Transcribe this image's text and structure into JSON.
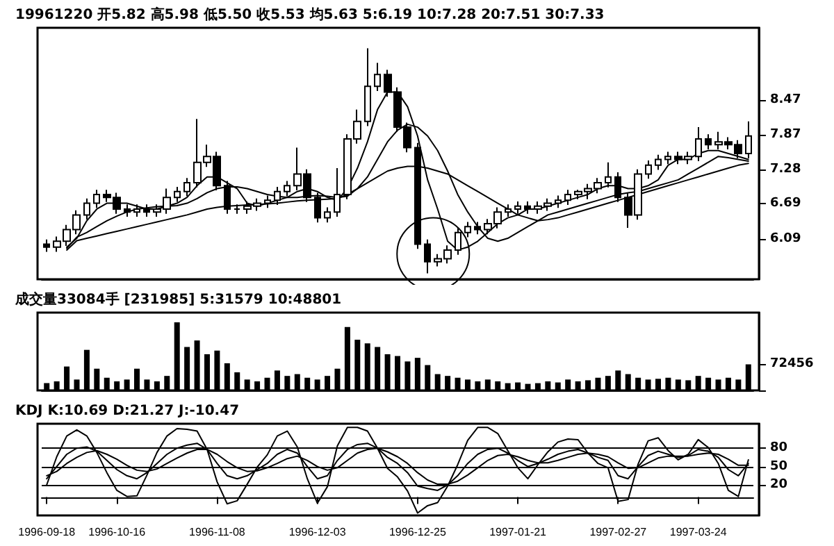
{
  "chart_data": [
    {
      "type": "candlestick",
      "title": "19961220 开5.82 高5.98 低5.50 收5.53 均5.63 5:6.19 10:7.28 20:7.51 30:7.33",
      "color": "#000000",
      "tick_labels": "y",
      "marker": "none",
      "line_style": "solid",
      "categories": [
        "1996-09-18",
        null,
        null,
        null,
        null,
        null,
        null,
        "1996-10-16",
        null,
        null,
        null,
        null,
        null,
        null,
        null,
        null,
        null,
        "1996-11-08",
        null,
        null,
        null,
        null,
        null,
        null,
        null,
        null,
        null,
        "1996-12-03",
        null,
        null,
        null,
        null,
        null,
        null,
        null,
        null,
        null,
        "1996-12-25",
        null,
        null,
        null,
        null,
        null,
        null,
        null,
        null,
        null,
        "1997-01-21",
        null,
        null,
        null,
        null,
        null,
        null,
        null,
        null,
        null,
        "1997-02-27",
        null,
        null,
        null,
        null,
        null,
        null,
        null,
        "1997-03-24",
        null,
        null,
        null,
        null,
        null
      ],
      "ylim": [
        5.4,
        9.7
      ],
      "yticks": [
        6.09,
        6.69,
        7.28,
        7.87,
        8.47
      ],
      "ohlc": [
        [
          6.0,
          6.08,
          5.87,
          5.95
        ],
        [
          5.95,
          6.13,
          5.87,
          6.05
        ],
        [
          6.05,
          6.33,
          5.97,
          6.25
        ],
        [
          6.25,
          6.58,
          6.17,
          6.5
        ],
        [
          6.5,
          6.78,
          6.42,
          6.7
        ],
        [
          6.7,
          6.93,
          6.62,
          6.85
        ],
        [
          6.85,
          6.93,
          6.72,
          6.8
        ],
        [
          6.8,
          6.88,
          6.52,
          6.6
        ],
        [
          6.6,
          6.68,
          6.47,
          6.55
        ],
        [
          6.55,
          6.68,
          6.47,
          6.6
        ],
        [
          6.6,
          6.68,
          6.47,
          6.55
        ],
        [
          6.55,
          6.68,
          6.47,
          6.6
        ],
        [
          6.6,
          6.95,
          6.52,
          6.8
        ],
        [
          6.8,
          6.98,
          6.72,
          6.9
        ],
        [
          6.9,
          7.13,
          6.82,
          7.05
        ],
        [
          7.05,
          8.14,
          6.97,
          7.4
        ],
        [
          7.4,
          7.7,
          7.32,
          7.5
        ],
        [
          7.5,
          7.58,
          6.92,
          7.0
        ],
        [
          7.0,
          7.08,
          6.52,
          6.6
        ],
        [
          6.6,
          6.68,
          6.52,
          6.6
        ],
        [
          6.6,
          6.73,
          6.52,
          6.65
        ],
        [
          6.65,
          6.78,
          6.57,
          6.7
        ],
        [
          6.7,
          6.83,
          6.62,
          6.75
        ],
        [
          6.75,
          6.98,
          6.67,
          6.9
        ],
        [
          6.9,
          7.08,
          6.82,
          7.0
        ],
        [
          7.0,
          7.65,
          6.92,
          7.2
        ],
        [
          7.2,
          7.28,
          6.72,
          6.8
        ],
        [
          6.8,
          6.88,
          6.37,
          6.45
        ],
        [
          6.45,
          6.63,
          6.37,
          6.55
        ],
        [
          6.55,
          7.3,
          6.47,
          6.85
        ],
        [
          6.85,
          7.88,
          6.77,
          7.8
        ],
        [
          7.8,
          8.3,
          7.72,
          8.1
        ],
        [
          8.1,
          9.35,
          8.02,
          8.7
        ],
        [
          8.7,
          9.1,
          8.62,
          8.9
        ],
        [
          8.9,
          8.98,
          8.52,
          8.6
        ],
        [
          8.6,
          8.68,
          7.92,
          8.0
        ],
        [
          8.0,
          8.08,
          7.57,
          7.65
        ],
        [
          7.65,
          7.73,
          5.92,
          6.0
        ],
        [
          6.0,
          6.08,
          5.5,
          5.7
        ],
        [
          5.7,
          5.83,
          5.62,
          5.75
        ],
        [
          5.75,
          5.98,
          5.67,
          5.9
        ],
        [
          5.9,
          6.28,
          5.82,
          6.2
        ],
        [
          6.2,
          6.38,
          6.12,
          6.3
        ],
        [
          6.3,
          6.38,
          6.17,
          6.25
        ],
        [
          6.25,
          6.43,
          6.17,
          6.35
        ],
        [
          6.35,
          6.63,
          6.27,
          6.55
        ],
        [
          6.55,
          6.68,
          6.47,
          6.6
        ],
        [
          6.6,
          6.73,
          6.52,
          6.65
        ],
        [
          6.65,
          6.73,
          6.52,
          6.6
        ],
        [
          6.6,
          6.73,
          6.52,
          6.65
        ],
        [
          6.65,
          6.78,
          6.57,
          6.7
        ],
        [
          6.7,
          6.83,
          6.62,
          6.75
        ],
        [
          6.75,
          6.93,
          6.67,
          6.85
        ],
        [
          6.85,
          6.93,
          6.77,
          6.9
        ],
        [
          6.9,
          7.03,
          6.77,
          6.95
        ],
        [
          6.95,
          7.13,
          6.87,
          7.05
        ],
        [
          7.05,
          7.4,
          6.97,
          7.15
        ],
        [
          7.15,
          7.23,
          6.72,
          6.8
        ],
        [
          6.8,
          6.88,
          6.28,
          6.5
        ],
        [
          6.5,
          7.28,
          6.42,
          7.2
        ],
        [
          7.2,
          7.43,
          7.12,
          7.35
        ],
        [
          7.35,
          7.53,
          7.27,
          7.45
        ],
        [
          7.45,
          7.58,
          7.37,
          7.5
        ],
        [
          7.5,
          7.58,
          7.37,
          7.45
        ],
        [
          7.45,
          7.58,
          7.37,
          7.5
        ],
        [
          7.5,
          8.0,
          7.42,
          7.8
        ],
        [
          7.8,
          7.88,
          7.62,
          7.7
        ],
        [
          7.7,
          7.92,
          7.62,
          7.75
        ],
        [
          7.75,
          7.83,
          7.62,
          7.7
        ],
        [
          7.7,
          7.78,
          7.47,
          7.55
        ],
        [
          7.55,
          8.1,
          7.47,
          7.85
        ]
      ],
      "series": [
        {
          "type": "line",
          "color": "#000000",
          "values": [
            null,
            null,
            5.95,
            6.1,
            6.4,
            6.6,
            6.7,
            6.7,
            6.7,
            6.65,
            6.6,
            6.6,
            6.65,
            6.7,
            6.8,
            7.0,
            7.15,
            7.15,
            7.05,
            6.95,
            6.7,
            6.65,
            6.7,
            6.75,
            6.8,
            6.9,
            6.95,
            6.9,
            6.8,
            6.75,
            6.95,
            7.3,
            7.75,
            8.3,
            8.6,
            8.6,
            8.35,
            7.85,
            7.1,
            6.6,
            6.05,
            5.9,
            5.95,
            6.05,
            6.2,
            6.35,
            6.45,
            6.5,
            6.6,
            6.6,
            6.65,
            6.7,
            6.75,
            6.8,
            6.85,
            6.95,
            7.0,
            7.0,
            6.95,
            6.95,
            7.0,
            7.1,
            7.35,
            7.45,
            7.45,
            7.55,
            7.6,
            7.6,
            7.55,
            7.5,
            7.45
          ]
        },
        {
          "type": "line",
          "color": "#000000",
          "values": [
            null,
            null,
            5.93,
            6.12,
            6.2,
            6.3,
            6.4,
            6.48,
            6.55,
            6.6,
            6.62,
            6.64,
            6.65,
            6.66,
            6.7,
            6.78,
            6.88,
            6.95,
            6.98,
            6.98,
            6.95,
            6.9,
            6.85,
            6.82,
            6.8,
            6.8,
            6.82,
            6.83,
            6.82,
            6.8,
            6.82,
            6.95,
            7.15,
            7.45,
            7.75,
            7.95,
            8.05,
            8.0,
            7.85,
            7.6,
            7.25,
            6.85,
            6.55,
            6.3,
            6.1,
            6.05,
            6.1,
            6.2,
            6.3,
            6.4,
            6.5,
            6.55,
            6.6,
            6.65,
            6.7,
            6.75,
            6.8,
            6.85,
            6.88,
            6.9,
            6.95,
            7.0,
            7.05,
            7.1,
            7.2,
            7.3,
            7.4,
            7.5,
            7.48,
            7.45,
            7.42
          ]
        },
        {
          "type": "line",
          "color": "#000000",
          "values": [
            null,
            null,
            5.9,
            6.06,
            6.1,
            6.14,
            6.18,
            6.22,
            6.26,
            6.3,
            6.34,
            6.38,
            6.42,
            6.46,
            6.5,
            6.55,
            6.6,
            6.63,
            6.65,
            6.66,
            6.67,
            6.68,
            6.69,
            6.7,
            6.72,
            6.74,
            6.75,
            6.76,
            6.77,
            6.78,
            6.85,
            6.95,
            7.05,
            7.15,
            7.25,
            7.3,
            7.33,
            7.33,
            7.3,
            7.25,
            7.2,
            7.1,
            7.0,
            6.9,
            6.8,
            6.7,
            6.6,
            6.5,
            6.45,
            6.4,
            6.42,
            6.45,
            6.5,
            6.55,
            6.6,
            6.65,
            6.7,
            6.75,
            6.8,
            6.85,
            6.9,
            6.95,
            7.0,
            7.05,
            7.1,
            7.15,
            7.2,
            7.25,
            7.3,
            7.35,
            7.38
          ]
        }
      ]
    },
    {
      "type": "bar",
      "title": "成交量33084手 [231985] 5:31579 10:48801",
      "tick_labels": "y",
      "categories": [
        "1996-09-18",
        null,
        null,
        null,
        null,
        null,
        null,
        "1996-10-16",
        null,
        null,
        null,
        null,
        null,
        null,
        null,
        null,
        null,
        "1996-11-08",
        null,
        null,
        null,
        null,
        null,
        null,
        null,
        null,
        null,
        "1996-12-03",
        null,
        null,
        null,
        null,
        null,
        null,
        null,
        null,
        null,
        "1996-12-25",
        null,
        null,
        null,
        null,
        null,
        null,
        null,
        null,
        null,
        "1997-01-21",
        null,
        null,
        null,
        null,
        null,
        null,
        null,
        null,
        null,
        "1997-02-27",
        null,
        null,
        null,
        null,
        null,
        null,
        null,
        "1997-03-24",
        null,
        null,
        null,
        null,
        null
      ],
      "ylim": [
        0,
        215000
      ],
      "yticks": [
        {
          "value": 0,
          "label": null
        },
        72456
      ],
      "series": [
        {
          "color": "#000000",
          "values": [
            20000,
            25000,
            66000,
            30000,
            112000,
            60000,
            35000,
            25000,
            30000,
            60000,
            30000,
            25000,
            40000,
            188000,
            120000,
            138000,
            100000,
            110000,
            75000,
            50000,
            30000,
            25000,
            35000,
            55000,
            40000,
            45000,
            35000,
            30000,
            40000,
            60000,
            175000,
            140000,
            130000,
            120000,
            100000,
            95000,
            80000,
            90000,
            70000,
            45000,
            40000,
            35000,
            30000,
            25000,
            30000,
            25000,
            20000,
            22000,
            18000,
            20000,
            25000,
            22000,
            30000,
            25000,
            28000,
            35000,
            40000,
            55000,
            45000,
            35000,
            30000,
            32000,
            35000,
            30000,
            28000,
            40000,
            35000,
            30000,
            35000,
            30000,
            72000
          ]
        }
      ]
    },
    {
      "type": "line",
      "title": "KDJ K:10.69 D:21.27 J:-10.47",
      "marker": "none",
      "line_style": "solid",
      "categories": [
        "1996-09-18",
        null,
        null,
        null,
        null,
        null,
        null,
        "1996-10-16",
        null,
        null,
        null,
        null,
        null,
        null,
        null,
        null,
        null,
        "1996-11-08",
        null,
        null,
        null,
        null,
        null,
        null,
        null,
        null,
        null,
        "1996-12-03",
        null,
        null,
        null,
        null,
        null,
        null,
        null,
        null,
        null,
        "1996-12-25",
        null,
        null,
        null,
        null,
        null,
        null,
        null,
        null,
        null,
        "1997-01-21",
        null,
        null,
        null,
        null,
        null,
        null,
        null,
        null,
        null,
        "1997-02-27",
        null,
        null,
        null,
        null,
        null,
        null,
        null,
        "1997-03-24",
        null,
        null,
        null,
        null,
        null
      ],
      "ylim": [
        -30,
        120
      ],
      "yticks": [
        20,
        50,
        80
      ],
      "ref_lines": [
        {
          "axis": "y",
          "value": 80,
          "color": "#000000"
        },
        {
          "axis": "y",
          "value": 50,
          "color": "#000000"
        },
        {
          "axis": "y",
          "value": 20,
          "color": "#000000"
        }
      ],
      "series": [
        {
          "color": "#000000",
          "values": [
            30,
            50,
            70,
            80,
            82,
            75,
            60,
            45,
            35,
            30,
            40,
            55,
            70,
            80,
            85,
            88,
            78,
            55,
            35,
            30,
            35,
            45,
            55,
            70,
            78,
            72,
            50,
            30,
            35,
            60,
            78,
            86,
            88,
            80,
            65,
            55,
            40,
            18,
            14,
            11,
            20,
            35,
            55,
            70,
            78,
            80,
            72,
            60,
            50,
            55,
            62,
            70,
            75,
            78,
            72,
            65,
            60,
            35,
            30,
            50,
            68,
            75,
            70,
            65,
            68,
            78,
            75,
            65,
            45,
            35,
            55
          ]
        },
        {
          "color": "#000000",
          "values": [
            35,
            42,
            55,
            65,
            73,
            76,
            70,
            62,
            52,
            44,
            42,
            46,
            55,
            64,
            72,
            78,
            78,
            70,
            58,
            48,
            42,
            43,
            48,
            55,
            63,
            67,
            60,
            50,
            44,
            48,
            60,
            72,
            78,
            80,
            74,
            66,
            55,
            40,
            28,
            21,
            21,
            26,
            36,
            48,
            60,
            68,
            70,
            66,
            60,
            56,
            56,
            60,
            65,
            70,
            72,
            70,
            66,
            56,
            47,
            48,
            56,
            64,
            67,
            67,
            67,
            70,
            72,
            70,
            62,
            52,
            52
          ]
        },
        {
          "color": "#000000",
          "values": [
            20,
            66,
            100,
            110,
            100,
            73,
            40,
            11,
            1,
            2,
            36,
            73,
            100,
            112,
            111,
            108,
            78,
            25,
            -11,
            -6,
            21,
            49,
            69,
            100,
            108,
            82,
            30,
            -10,
            17,
            84,
            114,
            114,
            108,
            80,
            47,
            33,
            10,
            -26,
            -14,
            -9,
            18,
            53,
            93,
            114,
            114,
            104,
            76,
            48,
            30,
            53,
            74,
            90,
            95,
            94,
            72,
            55,
            48,
            -7,
            -4,
            54,
            92,
            97,
            76,
            61,
            70,
            94,
            81,
            55,
            11,
            1,
            61
          ]
        }
      ]
    }
  ]
}
